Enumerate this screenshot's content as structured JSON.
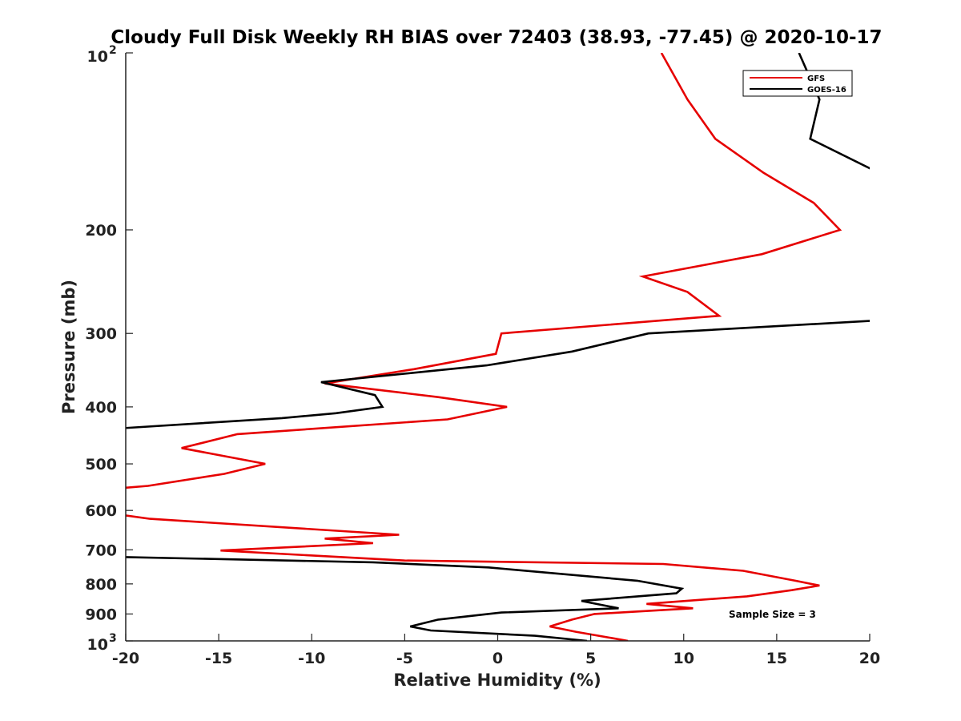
{
  "chart_data": {
    "type": "line",
    "title": "Cloudy Full Disk Weekly RH BIAS over 72403 (38.93, -77.45) @ 2020-10-17",
    "xlabel": "Relative Humidity (%)",
    "ylabel": "Pressure (mb)",
    "xlim": [
      -20,
      20
    ],
    "ylim": [
      100,
      1000
    ],
    "y_scale": "log",
    "y_reversed": true,
    "grid": false,
    "legend_position": "top-right",
    "x_ticks": [
      "-20",
      "-15",
      "-10",
      "-5",
      "0",
      "5",
      "10",
      "15",
      "20"
    ],
    "y_ticks": [
      {
        "value": 100,
        "base": "10",
        "exp": "2"
      },
      {
        "value": 200,
        "label": "200"
      },
      {
        "value": 300,
        "label": "300"
      },
      {
        "value": 400,
        "label": "400"
      },
      {
        "value": 500,
        "label": "500"
      },
      {
        "value": 600,
        "label": "600"
      },
      {
        "value": 700,
        "label": "700"
      },
      {
        "value": 800,
        "label": "800"
      },
      {
        "value": 900,
        "label": "900"
      },
      {
        "value": 1000,
        "base": "10",
        "exp": "3"
      }
    ],
    "series": [
      {
        "name": "GFS",
        "color": "#e60000",
        "points": [
          [
            8.8,
            100
          ],
          [
            10.2,
            120
          ],
          [
            11.7,
            140
          ],
          [
            14.3,
            160
          ],
          [
            17.0,
            180
          ],
          [
            18.4,
            200
          ],
          [
            14.2,
            220
          ],
          [
            7.8,
            240
          ],
          [
            10.2,
            255
          ],
          [
            11.9,
            280
          ],
          [
            0.2,
            300
          ],
          [
            -0.1,
            325
          ],
          [
            -4.5,
            345
          ],
          [
            -9.3,
            365
          ],
          [
            -3.2,
            385
          ],
          [
            0.5,
            400
          ],
          [
            -2.7,
            420
          ],
          [
            -14.0,
            445
          ],
          [
            -17.0,
            470
          ],
          [
            -12.5,
            500
          ],
          [
            -14.7,
            520
          ],
          [
            -18.8,
            545
          ],
          [
            -20.3,
            550
          ],
          [
            -20.3,
            610
          ],
          [
            -18.7,
            620
          ],
          [
            -5.3,
            660
          ],
          [
            -9.3,
            670
          ],
          [
            -6.7,
            682
          ],
          [
            -14.9,
            702
          ],
          [
            -5.0,
            730
          ],
          [
            8.9,
            740
          ],
          [
            13.2,
            760
          ],
          [
            16.0,
            790
          ],
          [
            17.3,
            805
          ],
          [
            15.8,
            820
          ],
          [
            13.4,
            840
          ],
          [
            8.0,
            865
          ],
          [
            10.5,
            880
          ],
          [
            5.2,
            900
          ],
          [
            4.0,
            920
          ],
          [
            2.8,
            945
          ],
          [
            4.2,
            965
          ],
          [
            7.0,
            1000
          ]
        ]
      },
      {
        "name": "GOES-16",
        "color": "#000000",
        "points": [
          [
            16.2,
            100
          ],
          [
            17.3,
            120
          ],
          [
            16.8,
            140
          ],
          [
            20.5,
            160
          ],
          [
            20.5,
            285
          ],
          [
            8.1,
            300
          ],
          [
            4.0,
            322
          ],
          [
            -0.6,
            340
          ],
          [
            -9.5,
            363
          ],
          [
            -6.6,
            382
          ],
          [
            -6.2,
            400
          ],
          [
            -8.7,
            410
          ],
          [
            -11.6,
            418
          ],
          [
            -20.3,
            435
          ],
          [
            -20.3,
            720
          ],
          [
            -6.7,
            735
          ],
          [
            -0.5,
            750
          ],
          [
            7.5,
            790
          ],
          [
            9.9,
            815
          ],
          [
            9.6,
            830
          ],
          [
            4.5,
            855
          ],
          [
            6.5,
            880
          ],
          [
            0.2,
            895
          ],
          [
            -3.2,
            920
          ],
          [
            -4.7,
            945
          ],
          [
            -3.6,
            960
          ],
          [
            2.0,
            980
          ],
          [
            4.8,
            1000
          ]
        ]
      }
    ],
    "annotation": "Sample Size = 3"
  }
}
